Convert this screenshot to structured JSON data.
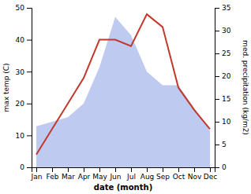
{
  "chart_data": {
    "type": "line",
    "categories": [
      "Jan",
      "Feb",
      "Mar",
      "Apr",
      "May",
      "Jun",
      "Jul",
      "Aug",
      "Sep",
      "Oct",
      "Nov",
      "Dec"
    ],
    "xlabel": "date (month)",
    "ylabel": "max temp (C)",
    "y2label": "med. precipitation (kg/m2)",
    "series": [
      {
        "type": "area",
        "axis": "y2",
        "color": "#b8c4ee",
        "values": [
          9,
          10,
          11,
          14,
          22,
          33,
          29,
          21,
          18,
          18,
          13,
          8
        ]
      },
      {
        "type": "line",
        "color": "#c0392b",
        "values": [
          4,
          12,
          20,
          28,
          40,
          40,
          38,
          48,
          44,
          25,
          18,
          12
        ]
      }
    ],
    "ylim": [
      0,
      50
    ],
    "yticks": [
      0,
      10,
      20,
      30,
      40,
      50
    ],
    "y2lim": [
      0,
      35
    ],
    "y2ticks": [
      0,
      5,
      10,
      15,
      20,
      25,
      30,
      35
    ],
    "grid": false
  }
}
